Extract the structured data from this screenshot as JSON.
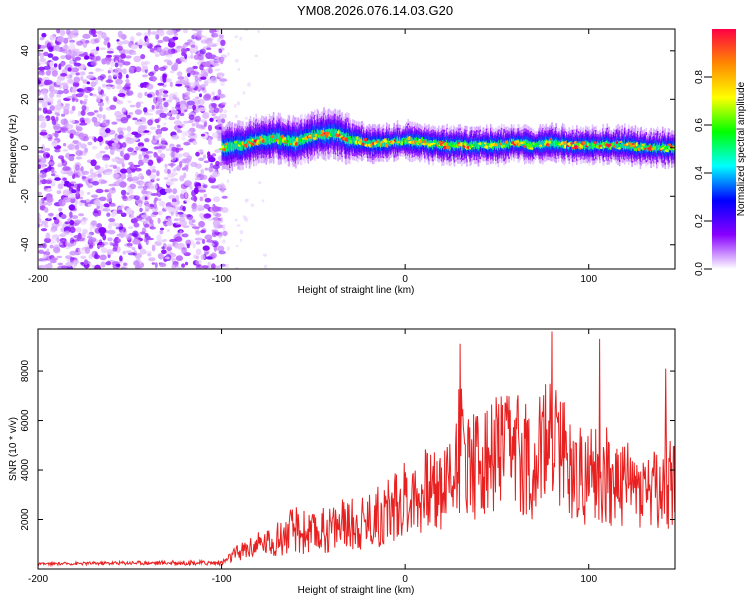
{
  "title": "YM08.2026.076.14.03.G20",
  "chart_data": [
    {
      "type": "heatmap",
      "name": "spectrogram",
      "xlabel": "Height of straight line (km)",
      "ylabel": "Frequency (Hz)",
      "xlim": [
        -200,
        147
      ],
      "ylim": [
        -50,
        49
      ],
      "xticks": [
        -200,
        -100,
        0,
        100
      ],
      "xtick_labels": [
        "-200",
        "-100",
        "0",
        "100"
      ],
      "yticks": [
        -40,
        -20,
        0,
        20,
        40
      ],
      "ytick_labels": [
        "-40",
        "-20",
        "0",
        "20",
        "40"
      ],
      "description_points": {
        "noise_region_km": [
          -200,
          -100
        ],
        "band_center_hz": {
          "x": [
            -100,
            -90,
            -80,
            -70,
            -60,
            -50,
            -40,
            -35,
            -30,
            -20,
            -10,
            0,
            10,
            20,
            30,
            40,
            50,
            60,
            70,
            80,
            90,
            100,
            110,
            120,
            130,
            147
          ],
          "y": [
            0,
            1,
            3,
            4,
            2,
            5,
            6,
            5,
            3,
            2,
            2,
            3,
            2,
            1,
            1,
            1,
            1,
            2,
            1,
            2,
            1,
            1,
            1,
            1,
            0,
            0
          ]
        },
        "band_halfwidth_hz": 3
      },
      "colorbar": {
        "label": "Normalized spectral amplitude",
        "range": [
          0.0,
          1.0
        ],
        "ticks": [
          0.0,
          0.2,
          0.4,
          0.6,
          0.8
        ],
        "tick_labels": [
          "0.0",
          "0.2",
          "0.4",
          "0.6",
          "0.8"
        ],
        "colors": [
          "#ffffff",
          "#8800ff",
          "#0000ff",
          "#00ffff",
          "#00ff00",
          "#ffff00",
          "#ff8800",
          "#ff0044"
        ]
      }
    },
    {
      "type": "line",
      "name": "snr",
      "xlabel": "Height of straight line (km)",
      "ylabel": "SNR (10 * v/v)",
      "xlim": [
        -200,
        147
      ],
      "ylim": [
        0,
        9700
      ],
      "xticks": [
        -200,
        -100,
        0,
        100
      ],
      "xtick_labels": [
        "-200",
        "-100",
        "0",
        "100"
      ],
      "yticks": [
        2000,
        4000,
        6000,
        8000
      ],
      "ytick_labels": [
        "2000",
        "4000",
        "6000",
        "8000"
      ],
      "color": "#e82020",
      "x": [
        -200,
        -150,
        -100,
        -90,
        -80,
        -70,
        -60,
        -50,
        -40,
        -30,
        -20,
        -10,
        0,
        10,
        20,
        25,
        30,
        40,
        50,
        60,
        70,
        80,
        90,
        100,
        110,
        120,
        130,
        140,
        147
      ],
      "y": [
        200,
        250,
        250,
        700,
        1000,
        1200,
        1600,
        1400,
        1700,
        1800,
        2000,
        2300,
        2900,
        3100,
        3400,
        3800,
        4900,
        4300,
        4600,
        4800,
        4300,
        5400,
        4200,
        3700,
        3800,
        3300,
        3400,
        3100,
        3700
      ],
      "variation": [
        50,
        80,
        100,
        400,
        500,
        700,
        1000,
        900,
        1000,
        1100,
        1200,
        1400,
        1500,
        1700,
        1900,
        2200,
        2600,
        2400,
        2500,
        2500,
        2400,
        2600,
        2300,
        2000,
        2000,
        1800,
        1800,
        1700,
        2100
      ],
      "peaks": [
        {
          "x": 30,
          "y": 9100
        },
        {
          "x": 80,
          "y": 9600
        },
        {
          "x": 106,
          "y": 9300
        },
        {
          "x": 142,
          "y": 8100
        }
      ]
    }
  ]
}
